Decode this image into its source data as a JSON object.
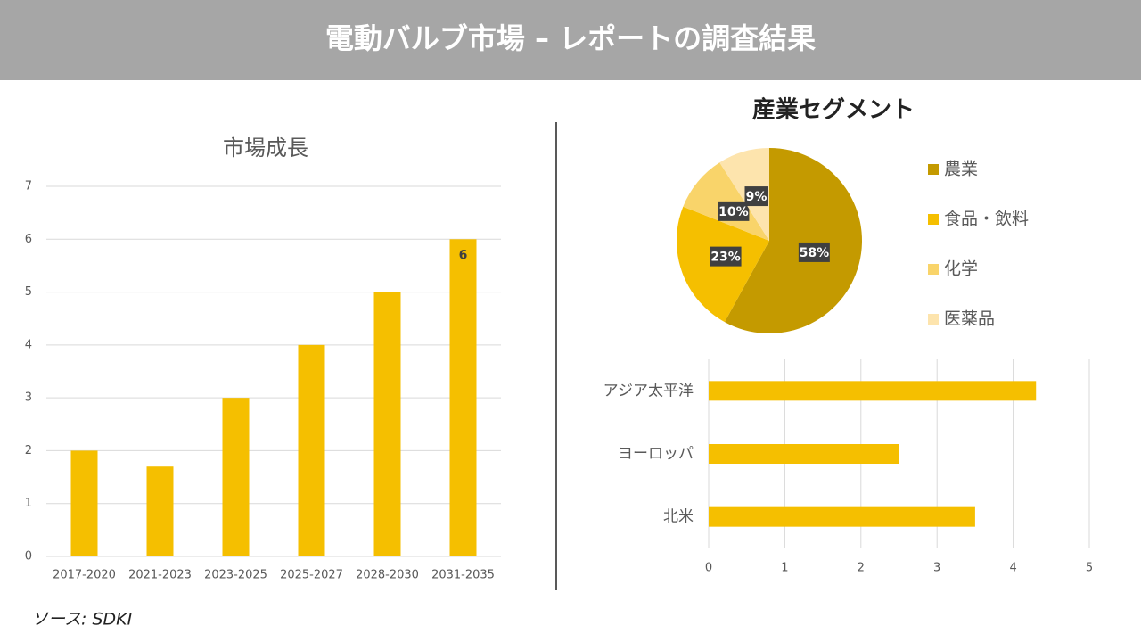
{
  "header": {
    "title": "電動バルブ市場 – レポートの調査結果"
  },
  "source": "ソース: SDKI",
  "chart_data": [
    {
      "type": "bar",
      "title": "市場成長",
      "categories": [
        "2017-2020",
        "2021-2023",
        "2023-2025",
        "2025-2027",
        "2028-2030",
        "2031-2035"
      ],
      "values": [
        2,
        1.7,
        3,
        4,
        5,
        6
      ],
      "value_labels": [
        null,
        null,
        null,
        null,
        null,
        "6"
      ],
      "color": "#f5bf00",
      "ylim": [
        0,
        7
      ],
      "yticks": [
        0,
        1,
        2,
        3,
        4,
        5,
        6,
        7
      ],
      "grid": true
    },
    {
      "type": "pie",
      "title": "産業セグメント",
      "categories": [
        "農業",
        "食品・飲料",
        "化学",
        "医薬品"
      ],
      "values": [
        58,
        23,
        10,
        9
      ],
      "value_labels": [
        "58%",
        "23%",
        "10%",
        "9%"
      ],
      "colors": [
        "#c49a00",
        "#f5bf00",
        "#f9d46a",
        "#fde4ad"
      ],
      "legend": "right"
    },
    {
      "type": "hbar",
      "categories": [
        "アジア太平洋",
        "ヨーロッパ",
        "北米"
      ],
      "values": [
        4.3,
        2.5,
        3.5
      ],
      "color": "#f5bf00",
      "xlim": [
        0,
        5
      ],
      "xticks": [
        0,
        1,
        2,
        3,
        4,
        5
      ],
      "grid": true
    }
  ]
}
